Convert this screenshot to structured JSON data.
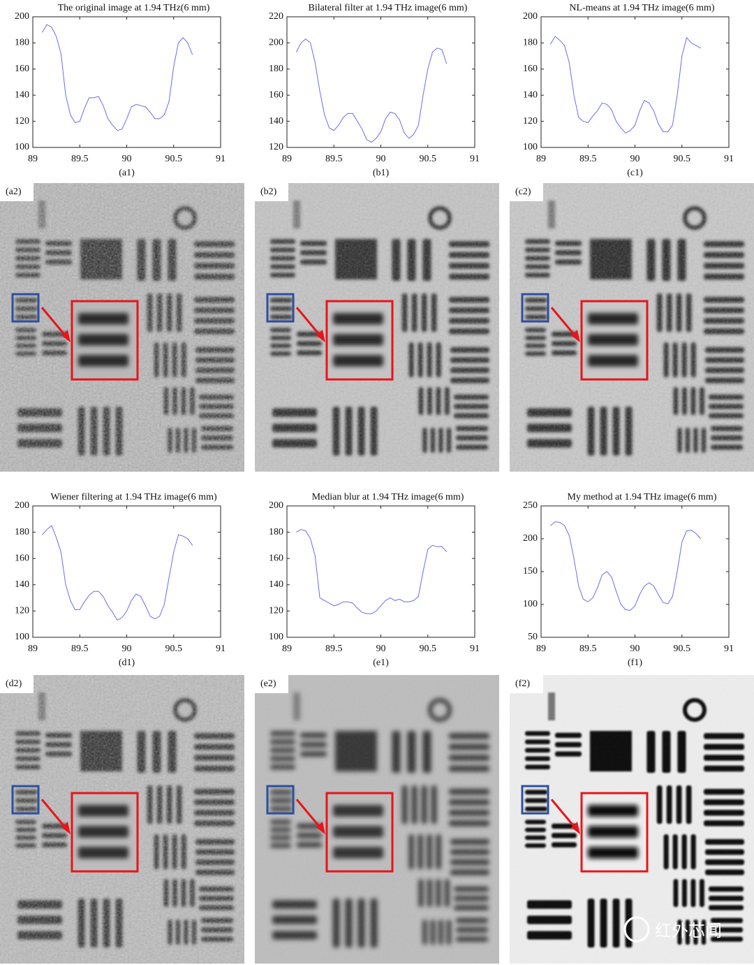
{
  "chart_data": [
    {
      "type": "line",
      "title": "The original image at 1.94 THz(6 mm)",
      "caption": "(a1)",
      "color": "#6b6bf0",
      "x": [
        89.1,
        89.15,
        89.2,
        89.25,
        89.3,
        89.35,
        89.4,
        89.45,
        89.5,
        89.55,
        89.6,
        89.65,
        89.7,
        89.75,
        89.8,
        89.85,
        89.9,
        89.95,
        90.0,
        90.05,
        90.1,
        90.15,
        90.2,
        90.25,
        90.3,
        90.35,
        90.4,
        90.45,
        90.5,
        90.55,
        90.6,
        90.65,
        90.7
      ],
      "values": [
        188,
        194,
        192,
        185,
        172,
        140,
        125,
        119,
        120,
        130,
        138,
        138,
        139,
        132,
        122,
        117,
        113,
        114,
        122,
        131,
        133,
        132,
        131,
        127,
        122,
        122,
        125,
        135,
        162,
        180,
        184,
        180,
        171
      ],
      "xlim": [
        89,
        91
      ],
      "xticks": [
        89,
        89.5,
        90,
        90.5,
        91
      ],
      "ylim": [
        100,
        200
      ],
      "yticks": [
        100,
        120,
        140,
        160,
        180,
        200
      ]
    },
    {
      "type": "line",
      "title": "Bilateral filter at 1.94 THz image(6 mm)",
      "caption": "(b1)",
      "color": "#6b6bf0",
      "x": [
        89.1,
        89.15,
        89.2,
        89.25,
        89.3,
        89.35,
        89.4,
        89.45,
        89.5,
        89.55,
        89.6,
        89.65,
        89.7,
        89.75,
        89.8,
        89.85,
        89.9,
        89.95,
        90.0,
        90.05,
        90.1,
        90.15,
        90.2,
        90.25,
        90.3,
        90.35,
        90.4,
        90.45,
        90.5,
        90.55,
        90.6,
        90.65,
        90.7
      ],
      "values": [
        193,
        200,
        203,
        200,
        185,
        163,
        145,
        135,
        133,
        137,
        143,
        146,
        146,
        140,
        134,
        126,
        124,
        127,
        132,
        142,
        147,
        146,
        141,
        131,
        127,
        130,
        137,
        160,
        180,
        193,
        196,
        195,
        184
      ],
      "xlim": [
        89,
        91
      ],
      "xticks": [
        89,
        89.5,
        90,
        90.5,
        91
      ],
      "ylim": [
        120,
        220
      ],
      "yticks": [
        120,
        140,
        160,
        180,
        200,
        220
      ]
    },
    {
      "type": "line",
      "title": "NL-means at 1.94 THz image(6 mm)",
      "caption": "(c1)",
      "color": "#6b6bf0",
      "x": [
        89.1,
        89.15,
        89.2,
        89.25,
        89.3,
        89.35,
        89.4,
        89.45,
        89.5,
        89.55,
        89.6,
        89.65,
        89.7,
        89.75,
        89.8,
        89.85,
        89.9,
        89.95,
        90.0,
        90.05,
        90.1,
        90.15,
        90.2,
        90.25,
        90.3,
        90.35,
        90.4,
        90.45,
        90.5,
        90.55,
        90.6,
        90.65,
        90.7
      ],
      "values": [
        179,
        185,
        182,
        178,
        165,
        140,
        123,
        120,
        119,
        124,
        128,
        134,
        133,
        129,
        120,
        115,
        111,
        113,
        117,
        128,
        136,
        134,
        128,
        118,
        112,
        112,
        117,
        140,
        170,
        184,
        180,
        178,
        176
      ],
      "xlim": [
        89,
        91
      ],
      "xticks": [
        89,
        89.5,
        90,
        90.5,
        91
      ],
      "ylim": [
        100,
        200
      ],
      "yticks": [
        100,
        120,
        140,
        160,
        180,
        200
      ]
    },
    {
      "type": "line",
      "title": "Wiener filtering at 1.94 THz image(6 mm)",
      "caption": "(d1)",
      "color": "#6b6bf0",
      "x": [
        89.1,
        89.15,
        89.2,
        89.25,
        89.3,
        89.35,
        89.4,
        89.45,
        89.5,
        89.55,
        89.6,
        89.65,
        89.7,
        89.75,
        89.8,
        89.85,
        89.9,
        89.95,
        90.0,
        90.05,
        90.1,
        90.15,
        90.2,
        90.25,
        90.3,
        90.35,
        90.4,
        90.45,
        90.5,
        90.55,
        90.6,
        90.65,
        90.7
      ],
      "values": [
        178,
        182,
        185,
        176,
        165,
        140,
        128,
        121,
        121,
        127,
        132,
        135,
        135,
        131,
        124,
        119,
        113,
        115,
        120,
        128,
        133,
        131,
        124,
        116,
        114,
        116,
        125,
        145,
        165,
        178,
        177,
        175,
        170
      ],
      "xlim": [
        89,
        91
      ],
      "xticks": [
        89,
        89.5,
        90,
        90.5,
        91
      ],
      "ylim": [
        100,
        200
      ],
      "yticks": [
        100,
        120,
        140,
        160,
        180,
        200
      ]
    },
    {
      "type": "line",
      "title": "Median blur at 1.94 THz image(6 mm)",
      "caption": "(e1)",
      "color": "#6b6bf0",
      "x": [
        89.1,
        89.15,
        89.2,
        89.25,
        89.3,
        89.35,
        89.4,
        89.45,
        89.5,
        89.55,
        89.6,
        89.65,
        89.7,
        89.75,
        89.8,
        89.85,
        89.9,
        89.95,
        90.0,
        90.05,
        90.1,
        90.15,
        90.2,
        90.25,
        90.3,
        90.35,
        90.4,
        90.45,
        90.5,
        90.55,
        90.6,
        90.65,
        90.7
      ],
      "values": [
        180,
        182,
        181,
        175,
        162,
        130,
        128,
        126,
        124,
        125,
        127,
        127,
        126,
        122,
        119,
        118,
        118,
        120,
        124,
        128,
        130,
        128,
        129,
        127,
        127,
        128,
        131,
        150,
        167,
        170,
        169,
        169,
        165
      ],
      "xlim": [
        89,
        91
      ],
      "xticks": [
        89,
        89.5,
        90,
        90.5,
        91
      ],
      "ylim": [
        100,
        200
      ],
      "yticks": [
        100,
        120,
        140,
        160,
        180,
        200
      ]
    },
    {
      "type": "line",
      "title": "My method at 1.94 THz image(6 mm)",
      "caption": "(f1)",
      "color": "#6b6bf0",
      "x": [
        89.1,
        89.15,
        89.2,
        89.25,
        89.3,
        89.35,
        89.4,
        89.45,
        89.5,
        89.55,
        89.6,
        89.65,
        89.7,
        89.75,
        89.8,
        89.85,
        89.9,
        89.95,
        90.0,
        90.05,
        90.1,
        90.15,
        90.2,
        90.25,
        90.3,
        90.35,
        90.4,
        90.45,
        90.5,
        90.55,
        90.6,
        90.65,
        90.7
      ],
      "values": [
        220,
        226,
        225,
        220,
        205,
        170,
        128,
        108,
        104,
        110,
        125,
        145,
        150,
        142,
        120,
        100,
        92,
        91,
        98,
        115,
        128,
        133,
        128,
        115,
        103,
        101,
        112,
        150,
        195,
        212,
        213,
        208,
        200
      ],
      "xlim": [
        89,
        91
      ],
      "xticks": [
        89,
        89.5,
        90,
        90.5,
        91
      ],
      "ylim": [
        50,
        250
      ],
      "yticks": [
        50,
        100,
        150,
        200,
        250
      ]
    }
  ],
  "images": [
    {
      "label": "(a2)"
    },
    {
      "label": "(b2)"
    },
    {
      "label": "(c2)"
    },
    {
      "label": "(d2)"
    },
    {
      "label": "(e2)"
    },
    {
      "label": "(f2)"
    }
  ],
  "watermark": "红外芯闻"
}
